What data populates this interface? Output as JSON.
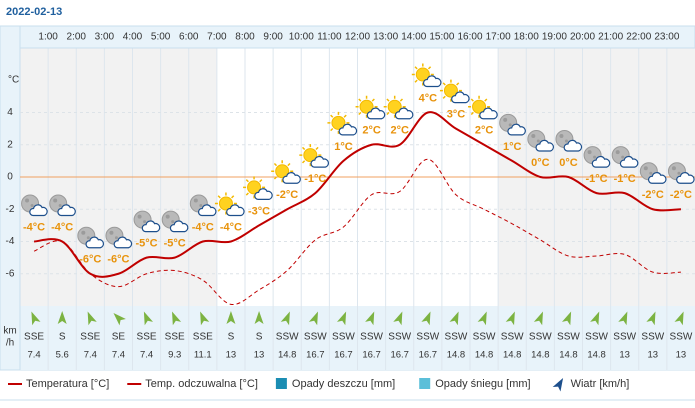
{
  "chart_data": {
    "type": "line",
    "title": "2022-02-13",
    "y_label": "°C",
    "xlim": [
      0,
      24
    ],
    "xticks": [
      {
        "value": 1,
        "label": "1:00"
      },
      {
        "value": 2,
        "label": "2:00"
      },
      {
        "value": 3,
        "label": "3:00"
      },
      {
        "value": 4,
        "label": "4:00"
      },
      {
        "value": 5,
        "label": "5:00"
      },
      {
        "value": 6,
        "label": "6:00"
      },
      {
        "value": 7,
        "label": "7:00"
      },
      {
        "value": 8,
        "label": "8:00"
      },
      {
        "value": 9,
        "label": "9:00"
      },
      {
        "value": 10,
        "label": "10:00"
      },
      {
        "value": 11,
        "label": "11:00"
      },
      {
        "value": 12,
        "label": "12:00"
      },
      {
        "value": 13,
        "label": "13:00"
      },
      {
        "value": 14,
        "label": "14:00"
      },
      {
        "value": 15,
        "label": "15:00"
      },
      {
        "value": 16,
        "label": "16:00"
      },
      {
        "value": 17,
        "label": "17:00"
      },
      {
        "value": 18,
        "label": "18:00"
      },
      {
        "value": 19,
        "label": "19:00"
      },
      {
        "value": 20,
        "label": "20:00"
      },
      {
        "value": 21,
        "label": "21:00"
      },
      {
        "value": 22,
        "label": "22:00"
      },
      {
        "value": 23,
        "label": "23:00"
      }
    ],
    "x": [
      0.5,
      1.5,
      2.5,
      3.5,
      4.5,
      5.5,
      6.5,
      7.5,
      8.5,
      9.5,
      10.5,
      11.5,
      12.5,
      13.5,
      14.5,
      15.5,
      16.5,
      17.5,
      18.5,
      19.5,
      20.5,
      21.5,
      22.5,
      23.5
    ],
    "daylight": [
      7,
      17
    ],
    "ylim": [
      -8,
      8
    ],
    "yticks": [
      -6,
      -4,
      -2,
      0,
      2,
      4
    ],
    "grid": true,
    "series": [
      {
        "name": "Temperatura [°C]",
        "color": "#c00000",
        "dash": false,
        "values": [
          -4,
          -4,
          -6,
          -6,
          -5,
          -5,
          -4,
          -4,
          -3,
          -2,
          -1,
          1,
          2,
          2,
          4,
          3,
          2,
          1,
          0,
          0,
          -1,
          -1,
          -2,
          -2
        ],
        "value_labels": [
          "-4°C",
          "-4°C",
          "-6°C",
          "-6°C",
          "-5°C",
          "-5°C",
          "-4°C",
          "-4°C",
          "-3°C",
          "-2°C",
          "-1°C",
          "1°C",
          "2°C",
          "2°C",
          "4°C",
          "3°C",
          "2°C",
          "1°C",
          "0°C",
          "0°C",
          "-1°C",
          "-1°C",
          "-2°C",
          "-2°C"
        ]
      },
      {
        "name": "Temp. odczuwalna [°C]",
        "color": "#c00000",
        "dash": true,
        "values": [
          -4.6,
          -4,
          -6,
          -6.8,
          -6,
          -5.8,
          -6.4,
          -7.9,
          -7,
          -5.8,
          -3.9,
          -3.1,
          -1.1,
          -0.9,
          1.1,
          -1.1,
          -2,
          -2.9,
          -3.9,
          -4.9,
          -4.9,
          -4.8,
          -5.9,
          -5.9
        ]
      }
    ],
    "legend_extra": [
      {
        "name": "Opady deszczu [mm]",
        "color": "#1b8db3"
      },
      {
        "name": "Opady śniegu [mm]",
        "color": "#5bbfd9"
      }
    ],
    "wind": {
      "name": "Wiatr [km/h]",
      "unit": [
        "km",
        "/h"
      ],
      "directions": [
        "SSE",
        "S",
        "SSE",
        "SE",
        "SSE",
        "SSE",
        "SSE",
        "S",
        "S",
        "SSW",
        "SSW",
        "SSW",
        "SSW",
        "SSW",
        "SSW",
        "SSW",
        "SSW",
        "SSW",
        "SSW",
        "SSW",
        "SSW",
        "SSW",
        "SSW",
        "SSW"
      ],
      "speeds": [
        7.4,
        5.6,
        7.4,
        7.4,
        7.4,
        9.3,
        11.1,
        13,
        13,
        14.8,
        16.7,
        16.7,
        16.7,
        16.7,
        16.7,
        14.8,
        14.8,
        14.8,
        14.8,
        14.8,
        14.8,
        13,
        13,
        13
      ]
    }
  }
}
